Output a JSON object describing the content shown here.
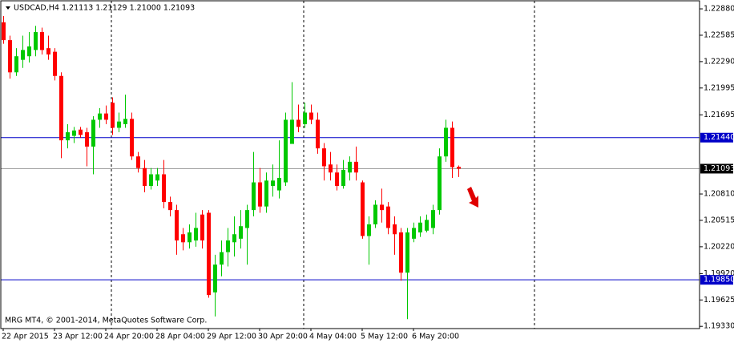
{
  "chart_data": {
    "type": "candlestick",
    "title": "USDCAD,H4  1.21113 1.21129 1.21000 1.21093",
    "annotation": "MRG MT4, © 2001-2014, MetaQuotes Software Corp.",
    "categories": [
      "22 Apr 2015",
      null,
      null,
      null,
      null,
      null,
      null,
      null,
      "23 Apr 12:00",
      null,
      null,
      null,
      null,
      null,
      null,
      null,
      "24 Apr 20:00",
      null,
      null,
      null,
      null,
      null,
      null,
      null,
      "28 Apr 04:00",
      null,
      null,
      null,
      null,
      null,
      null,
      null,
      "29 Apr 12:00",
      null,
      null,
      null,
      null,
      null,
      null,
      null,
      "30 Apr 20:00",
      null,
      null,
      null,
      null,
      null,
      null,
      null,
      "4 May 04:00",
      null,
      null,
      null,
      null,
      null,
      null,
      null,
      "5 May 12:00",
      null,
      null,
      null,
      null,
      null,
      null,
      null,
      "6 May 20:00",
      null,
      null,
      null,
      null,
      null,
      null,
      null
    ],
    "open": [
      1.2273,
      1.2253,
      1.2217,
      1.2231,
      1.2235,
      1.2242,
      1.2262,
      1.2244,
      1.224,
      1.2213,
      1.2141,
      1.2146,
      1.2153,
      1.215,
      1.2134,
      1.2164,
      1.2171,
      1.2183,
      1.2155,
      1.2159,
      1.2165,
      1.2123,
      1.211,
      1.209,
      1.2096,
      1.2103,
      1.2072,
      1.2063,
      1.2036,
      1.2027,
      1.2029,
      1.2058,
      1.206,
      1.1971,
      1.2002,
      1.2016,
      1.2027,
      1.2031,
      1.2043,
      1.2063,
      1.2094,
      1.2067,
      1.209,
      1.2085,
      1.2094,
      1.2137,
      1.2164,
      1.2159,
      1.2172,
      1.2164,
      1.2132,
      1.2114,
      1.2105,
      1.209,
      1.2105,
      1.2117,
      1.2094,
      1.2034,
      1.2047,
      1.2069,
      1.2067,
      1.2047,
      1.2038,
      1.1993,
      1.2031,
      1.2038,
      1.204,
      1.2043,
      1.2063,
      1.2123,
      1.2155,
      1.21113
    ],
    "high": [
      1.228,
      1.2258,
      1.2244,
      1.2258,
      1.2262,
      1.2269,
      1.2267,
      1.2258,
      1.2244,
      1.2217,
      1.2159,
      1.2156,
      1.2156,
      1.2155,
      1.2168,
      1.2177,
      1.218,
      1.2189,
      1.2172,
      1.2192,
      1.2172,
      1.2128,
      1.2119,
      1.211,
      1.211,
      1.2119,
      1.2078,
      1.2069,
      1.2043,
      1.2047,
      1.206,
      1.2063,
      1.2063,
      1.2013,
      1.2029,
      1.2043,
      1.2056,
      1.2063,
      1.2069,
      1.2128,
      1.211,
      1.2105,
      1.2114,
      1.2141,
      1.2172,
      1.2206,
      1.2181,
      1.2183,
      1.2181,
      1.2172,
      1.2138,
      1.2128,
      1.2114,
      1.2119,
      1.2123,
      1.2134,
      1.2096,
      1.2056,
      1.2074,
      1.2087,
      1.2072,
      1.2056,
      1.2043,
      1.2043,
      1.2049,
      1.2056,
      1.2058,
      1.2069,
      1.2132,
      1.2164,
      1.2162,
      1.21129
    ],
    "low": [
      1.2249,
      1.221,
      1.2213,
      1.2222,
      1.2228,
      1.2235,
      1.2237,
      1.2231,
      1.2208,
      1.2121,
      1.2132,
      1.2138,
      1.2144,
      1.2112,
      1.2103,
      1.2155,
      1.2159,
      1.2147,
      1.215,
      1.2155,
      1.2119,
      1.2105,
      1.2083,
      1.2086,
      1.209,
      1.2065,
      1.2056,
      1.2013,
      1.2018,
      1.202,
      1.2022,
      1.202,
      1.1965,
      1.1944,
      1.1989,
      1.2,
      1.2011,
      1.202,
      1.2002,
      1.2056,
      1.206,
      1.206,
      1.2078,
      1.2076,
      1.209,
      1.2137,
      1.215,
      1.2155,
      1.2159,
      1.2126,
      1.2096,
      1.2096,
      1.2085,
      1.2087,
      1.2096,
      1.2096,
      1.2031,
      1.2002,
      1.2043,
      1.2049,
      1.2036,
      1.2013,
      1.1984,
      1.1941,
      1.2027,
      1.2033,
      1.2038,
      1.2036,
      1.2058,
      1.2117,
      1.2099,
      1.21
    ],
    "close": [
      1.2253,
      1.2217,
      1.2235,
      1.2242,
      1.2246,
      1.2262,
      1.2242,
      1.2237,
      1.2213,
      1.2141,
      1.215,
      1.2152,
      1.2147,
      1.2134,
      1.2164,
      1.2171,
      1.2164,
      1.2155,
      1.2162,
      1.2165,
      1.2123,
      1.211,
      1.209,
      1.2103,
      1.2103,
      1.2072,
      1.2063,
      1.2029,
      1.2027,
      1.2038,
      1.2043,
      1.2029,
      1.1968,
      1.2002,
      1.2016,
      1.2029,
      1.2036,
      1.2045,
      1.2063,
      1.2094,
      1.2067,
      1.2096,
      1.2096,
      1.2099,
      1.2164,
      1.2164,
      1.2156,
      1.2172,
      1.2164,
      1.2132,
      1.2112,
      1.2105,
      1.209,
      1.2108,
      1.2117,
      1.2105,
      1.2034,
      1.2047,
      1.2069,
      1.2063,
      1.2043,
      1.2036,
      1.1993,
      1.2038,
      1.2043,
      1.2049,
      1.2052,
      1.2063,
      1.2123,
      1.2155,
      1.2111,
      1.21093
    ],
    "up_color": "#00c800",
    "down_color": "#ff0000",
    "ylim": [
      1.19305,
      1.2297
    ],
    "yticks": [
      {
        "value": 1.2288,
        "label": "1.22880"
      },
      {
        "value": 1.22585,
        "label": "1.22585"
      },
      {
        "value": 1.2229,
        "label": "1.22290"
      },
      {
        "value": 1.21995,
        "label": "1.21995"
      },
      {
        "value": 1.21695,
        "label": "1.21695"
      },
      {
        "value": 1.2081,
        "label": "1.20810"
      },
      {
        "value": 1.20515,
        "label": "1.20515"
      },
      {
        "value": 1.2022,
        "label": "1.20220"
      },
      {
        "value": 1.1992,
        "label": "1.19920"
      },
      {
        "value": 1.19625,
        "label": "1.19625"
      },
      {
        "value": 1.1933,
        "label": "1.19330"
      }
    ],
    "levels": [
      {
        "value": 1.2144,
        "label": "1.21440",
        "color": "#0000c8"
      },
      {
        "value": 1.1985,
        "label": "1.19850",
        "color": "#0000c8"
      },
      {
        "value": 1.21093,
        "label": "1.21093",
        "color": "#a0a0a0"
      }
    ]
  }
}
